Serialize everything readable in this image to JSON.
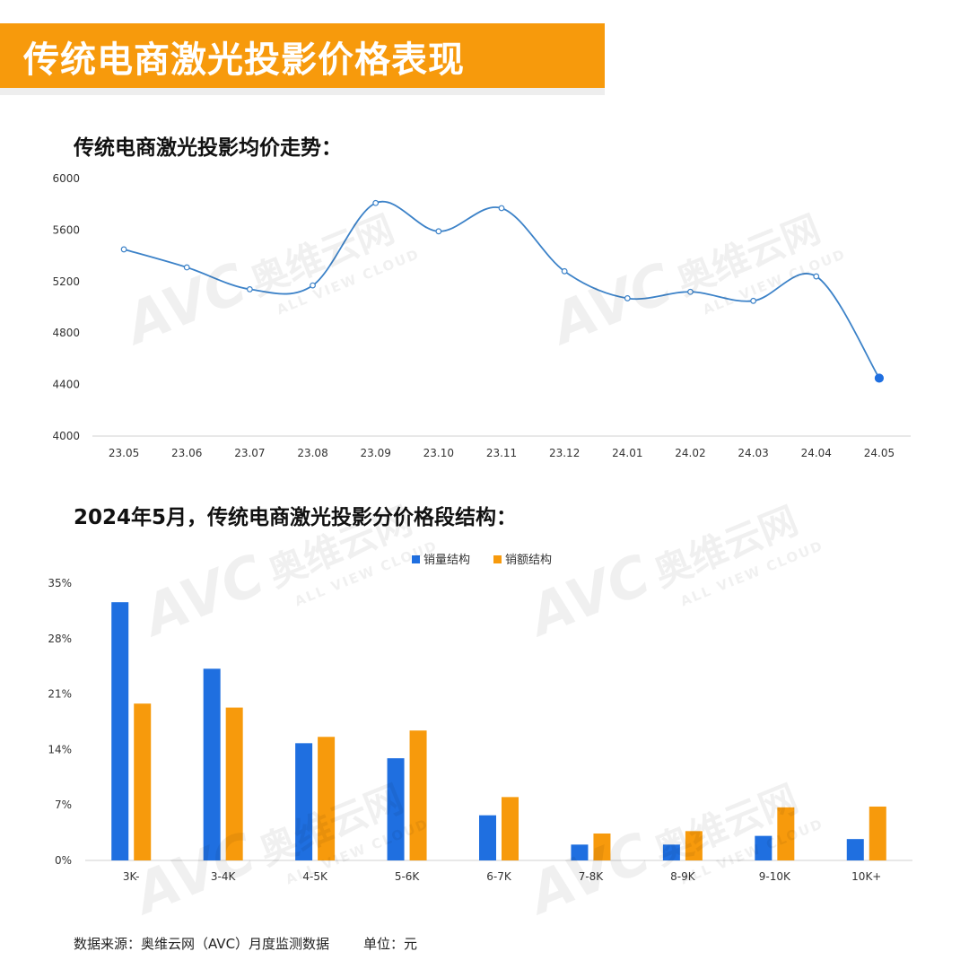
{
  "header": {
    "title": "传统电商激光投影价格表现"
  },
  "watermark": {
    "brand": "AVC",
    "cn": "奥维云网",
    "sub": "ALL VIEW CLOUD"
  },
  "chart_data": [
    {
      "type": "line",
      "title": "传统电商激光投影均价走势：",
      "x": [
        "23.05",
        "23.06",
        "23.07",
        "23.08",
        "23.09",
        "23.10",
        "23.11",
        "23.12",
        "24.01",
        "24.02",
        "24.03",
        "24.04",
        "24.05"
      ],
      "values": [
        5450,
        5310,
        5140,
        5170,
        5810,
        5590,
        5770,
        5280,
        5070,
        5120,
        5050,
        5240,
        4450
      ],
      "ylim": [
        4000,
        6000
      ],
      "yticks": [
        4000,
        4400,
        4800,
        5200,
        5600,
        6000
      ],
      "yticklabels": [
        "4000",
        "4400",
        "4800",
        "5200",
        "5600",
        "6000"
      ],
      "grid": false,
      "line_color": "#3c82c8"
    },
    {
      "type": "bar",
      "title": "2024年5月，传统电商激光投影分价格段结构：",
      "categories": [
        "3K-",
        "3-4K",
        "4-5K",
        "5-6K",
        "6-7K",
        "7-8K",
        "8-9K",
        "9-10K",
        "10K+"
      ],
      "series": [
        {
          "name": "销量结构",
          "color": "#1f6fe0",
          "values": [
            32.6,
            24.2,
            14.8,
            12.9,
            5.7,
            2.0,
            2.0,
            3.1,
            2.7
          ]
        },
        {
          "name": "销额结构",
          "color": "#f79a0c",
          "values": [
            19.8,
            19.3,
            15.6,
            16.4,
            8.0,
            3.4,
            3.7,
            6.7,
            6.8
          ]
        }
      ],
      "ylim": [
        0,
        35
      ],
      "yticks": [
        0,
        7,
        14,
        21,
        28,
        35
      ],
      "yticklabels": [
        "0%",
        "7%",
        "14%",
        "21%",
        "28%",
        "35%"
      ],
      "legend": "top-center",
      "grid": false
    }
  ],
  "footer": {
    "source": "数据来源：奥维云网（AVC）月度监测数据",
    "unit": "单位：元"
  }
}
